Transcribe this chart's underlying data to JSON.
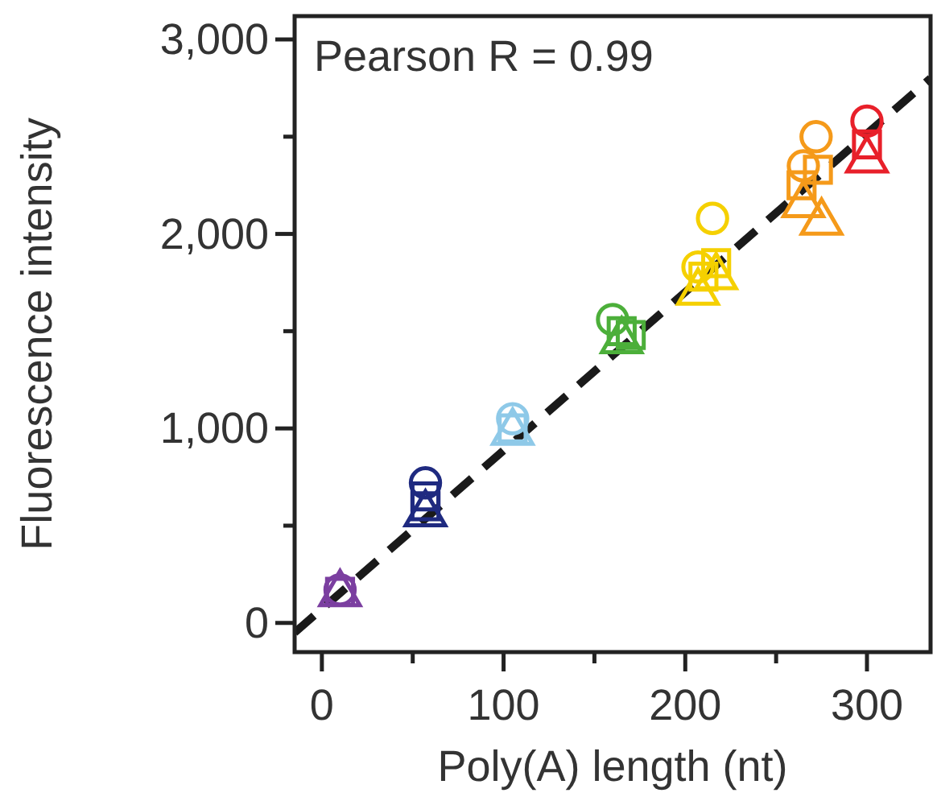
{
  "chart_data": {
    "type": "scatter",
    "xlabel": "Poly(A) length (nt)",
    "ylabel": "Fluorescence intensity",
    "annotations": [
      "Pearson R = 0.99"
    ],
    "xlim": [
      -15,
      335
    ],
    "ylim": [
      -150,
      3120
    ],
    "xticks": [
      0,
      {
        "value": 50,
        "label": null
      },
      100,
      {
        "value": 150,
        "label": null
      },
      200,
      {
        "value": 250,
        "label": null
      },
      300
    ],
    "yticks": [
      0,
      {
        "value": 500,
        "label": null
      },
      {
        "value": 1000,
        "label": "1,000"
      },
      {
        "value": 1500,
        "label": null
      },
      {
        "value": 2000,
        "label": "2,000"
      },
      {
        "value": 2500,
        "label": null
      },
      {
        "value": 3000,
        "label": "3,000"
      }
    ],
    "grid": false,
    "series": [
      {
        "type": "scatter",
        "marker": "circle",
        "x": [
          10,
          57,
          105,
          160,
          207,
          215,
          265,
          272,
          300
        ],
        "values": [
          170,
          720,
          1050,
          1560,
          1830,
          2080,
          2350,
          2500,
          2580
        ],
        "colors": [
          "#7b3fa0",
          "#1f2a80",
          "#8ec9e8",
          "#4caf3a",
          "#f5d000",
          "#f5d000",
          "#f59a1a",
          "#f59a1a",
          "#e8202a"
        ]
      },
      {
        "type": "scatter",
        "marker": "square",
        "x": [
          10,
          57,
          57,
          105,
          165,
          170,
          210,
          217,
          264,
          273,
          300
        ],
        "values": [
          160,
          650,
          600,
          1000,
          1500,
          1480,
          1780,
          1850,
          2250,
          2330,
          2460
        ],
        "colors": [
          "#7b3fa0",
          "#1f2a80",
          "#1f2a80",
          "#8ec9e8",
          "#4caf3a",
          "#4caf3a",
          "#f5d000",
          "#f5d000",
          "#f59a1a",
          "#f59a1a",
          "#e8202a"
        ]
      },
      {
        "type": "scatter",
        "marker": "triangle",
        "x": [
          10,
          57,
          105,
          165,
          207,
          217,
          265,
          275,
          300
        ],
        "values": [
          150,
          560,
          980,
          1450,
          1700,
          1780,
          2150,
          2060,
          2380
        ],
        "colors": [
          "#7b3fa0",
          "#1f2a80",
          "#8ec9e8",
          "#4caf3a",
          "#f5d000",
          "#f5d000",
          "#f59a1a",
          "#f59a1a",
          "#e8202a"
        ]
      },
      {
        "type": "line",
        "line_style": "dashed",
        "color": "#1a1a1a",
        "x": [
          -15,
          335
        ],
        "values": [
          -50,
          2800
        ]
      }
    ]
  }
}
